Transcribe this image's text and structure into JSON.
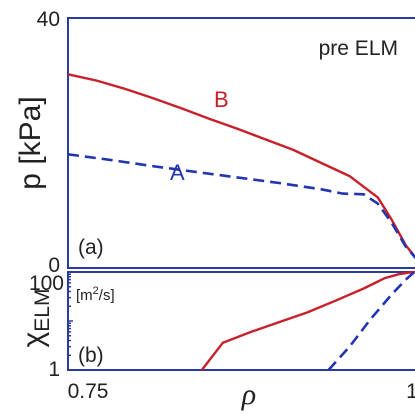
{
  "chart_data": [
    {
      "type": "line",
      "panel_label": "(a)",
      "annotation": "pre ELM",
      "ylabel": "p [kPa]",
      "xlim": [
        0.75,
        1.0
      ],
      "ylim": [
        0,
        40
      ],
      "yticks": [
        "0",
        "40"
      ],
      "series": [
        {
          "name": "B",
          "color": "#c8202a",
          "dash": "solid",
          "points": [
            [
              0.75,
              31.0
            ],
            [
              0.77,
              30.0
            ],
            [
              0.79,
              28.7
            ],
            [
              0.81,
              27.2
            ],
            [
              0.83,
              25.6
            ],
            [
              0.85,
              23.9
            ],
            [
              0.87,
              22.3
            ],
            [
              0.89,
              20.6
            ],
            [
              0.91,
              18.9
            ],
            [
              0.93,
              16.8
            ],
            [
              0.95,
              14.7
            ],
            [
              0.96,
              13.0
            ],
            [
              0.97,
              11.3
            ],
            [
              0.98,
              7.7
            ],
            [
              0.99,
              3.6
            ],
            [
              1.0,
              0.8
            ],
            [
              1.01,
              0.6
            ]
          ]
        },
        {
          "name": "A",
          "color": "#2234b0",
          "dash": "dashed",
          "points": [
            [
              0.75,
              18.2
            ],
            [
              0.78,
              17.3
            ],
            [
              0.81,
              16.3
            ],
            [
              0.84,
              15.4
            ],
            [
              0.87,
              14.5
            ],
            [
              0.9,
              13.6
            ],
            [
              0.93,
              12.6
            ],
            [
              0.945,
              11.9
            ],
            [
              0.96,
              11.8
            ],
            [
              0.97,
              10.3
            ],
            [
              0.98,
              7.2
            ],
            [
              0.99,
              3.4
            ],
            [
              1.0,
              0.8
            ],
            [
              1.01,
              0.6
            ]
          ]
        }
      ]
    },
    {
      "type": "line",
      "panel_label": "(b)",
      "ylabel": "χELM",
      "ylabel_main": "χ",
      "ylabel_sub": "ELM",
      "yunit_pre": "[m",
      "yunit_sup": "2",
      "yunit_post": "/s]",
      "yscale": "log",
      "xlabel": "ρ",
      "xlim": [
        0.75,
        1.0
      ],
      "ylim": [
        1,
        100
      ],
      "yticks": [
        "1",
        "100"
      ],
      "xticks": [
        "0.75",
        "1"
      ],
      "series": [
        {
          "name": "B",
          "color": "#c8202a",
          "dash": "solid",
          "points": [
            [
              0.845,
              1.0
            ],
            [
              0.86,
              3.6
            ],
            [
              0.88,
              6.0
            ],
            [
              0.9,
              9.5
            ],
            [
              0.92,
              15.0
            ],
            [
              0.94,
              26.0
            ],
            [
              0.96,
              46.0
            ],
            [
              0.975,
              75.0
            ],
            [
              0.985,
              90.0
            ],
            [
              0.995,
              100.0
            ],
            [
              1.005,
              92.0
            ],
            [
              1.01,
              85.0
            ]
          ]
        },
        {
          "name": "A",
          "color": "#2234b0",
          "dash": "dashed",
          "points": [
            [
              0.935,
              1.0
            ],
            [
              0.95,
              3.0
            ],
            [
              0.965,
              11.0
            ],
            [
              0.98,
              35.0
            ],
            [
              0.99,
              70.0
            ],
            [
              0.995,
              95.0
            ],
            [
              1.0,
              85.0
            ],
            [
              1.01,
              80.0
            ]
          ]
        }
      ]
    }
  ]
}
